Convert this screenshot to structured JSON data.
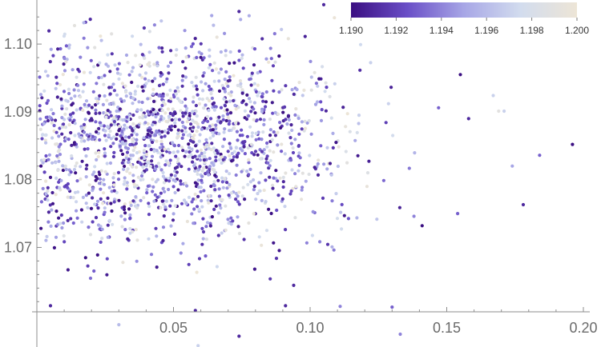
{
  "chart_data": {
    "type": "scatter",
    "title": "",
    "xlabel": "",
    "ylabel": "",
    "xlim": [
      0.0,
      0.2
    ],
    "ylim": [
      1.0605,
      1.1065
    ],
    "x_ticks": [
      {
        "value": 0.05,
        "label": "0.05"
      },
      {
        "value": 0.1,
        "label": "0.10"
      },
      {
        "value": 0.15,
        "label": "0.15"
      },
      {
        "value": 0.2,
        "label": "0.20"
      }
    ],
    "y_ticks": [
      {
        "value": 1.07,
        "label": "1.07"
      },
      {
        "value": 1.08,
        "label": "1.08"
      },
      {
        "value": 1.09,
        "label": "1.09"
      },
      {
        "value": 1.1,
        "label": "1.10"
      }
    ],
    "grid": false,
    "colorbar": {
      "placement": "top-right",
      "range": [
        1.19,
        1.2
      ],
      "ticks": [
        {
          "value": 1.19,
          "label": "1.190"
        },
        {
          "value": 1.192,
          "label": "1.192"
        },
        {
          "value": 1.194,
          "label": "1.194"
        },
        {
          "value": 1.196,
          "label": "1.196"
        },
        {
          "value": 1.198,
          "label": "1.198"
        },
        {
          "value": 1.2,
          "label": "1.200"
        }
      ],
      "colors": [
        "#3b0f82",
        "#6a4fc7",
        "#a7a6e6",
        "#d2dcee",
        "#ede5d6"
      ]
    },
    "points_note_count": 1800,
    "outliers": [
      {
        "x": 0.196,
        "y": 1.0852,
        "c": 1.19
      },
      {
        "x": 0.184,
        "y": 1.0836,
        "c": 1.193
      },
      {
        "x": 0.178,
        "y": 1.0763,
        "c": 1.191
      },
      {
        "x": 0.169,
        "y": 1.0901,
        "c": 1.199
      },
      {
        "x": 0.171,
        "y": 1.0901,
        "c": 1.197
      },
      {
        "x": 0.167,
        "y": 1.0924,
        "c": 1.197
      },
      {
        "x": 0.174,
        "y": 1.082,
        "c": 1.195
      },
      {
        "x": 0.158,
        "y": 1.089,
        "c": 1.191
      },
      {
        "x": 0.155,
        "y": 1.0955,
        "c": 1.19
      },
      {
        "x": 0.154,
        "y": 1.075,
        "c": 1.193
      },
      {
        "x": 0.147,
        "y": 1.0906,
        "c": 1.193
      },
      {
        "x": 0.141,
        "y": 1.0732,
        "c": 1.19
      },
      {
        "x": 0.138,
        "y": 1.0746,
        "c": 1.194
      },
      {
        "x": 0.13,
        "y": 1.0612,
        "c": 1.193
      },
      {
        "x": 0.133,
        "y": 1.0572,
        "c": 1.194
      },
      {
        "x": 0.111,
        "y": 1.0613,
        "c": 1.194
      },
      {
        "x": 0.105,
        "y": 1.1058,
        "c": 1.191
      },
      {
        "x": 0.074,
        "y": 1.1048,
        "c": 1.191
      },
      {
        "x": 0.064,
        "y": 1.1042,
        "c": 1.195
      },
      {
        "x": 0.059,
        "y": 1.0555,
        "c": 1.197
      },
      {
        "x": 0.074,
        "y": 1.0569,
        "c": 1.191
      },
      {
        "x": 0.03,
        "y": 1.0586,
        "c": 1.196
      },
      {
        "x": 0.005,
        "y": 1.0614,
        "c": 1.191
      },
      {
        "x": 0.058,
        "y": 1.0607,
        "c": 1.191
      },
      {
        "x": 0.091,
        "y": 1.0614,
        "c": 1.191
      },
      {
        "x": 0.094,
        "y": 1.0644,
        "c": 1.191
      },
      {
        "x": 0.0015,
        "y": 1.0728,
        "c": 1.19
      },
      {
        "x": 0.0015,
        "y": 1.082,
        "c": 1.19
      }
    ],
    "cloud": {
      "x_center": 0.045,
      "x_spread": 0.035,
      "y_center": 1.0855,
      "y_spread": 0.0075,
      "c_range": [
        1.19,
        1.2
      ]
    }
  }
}
